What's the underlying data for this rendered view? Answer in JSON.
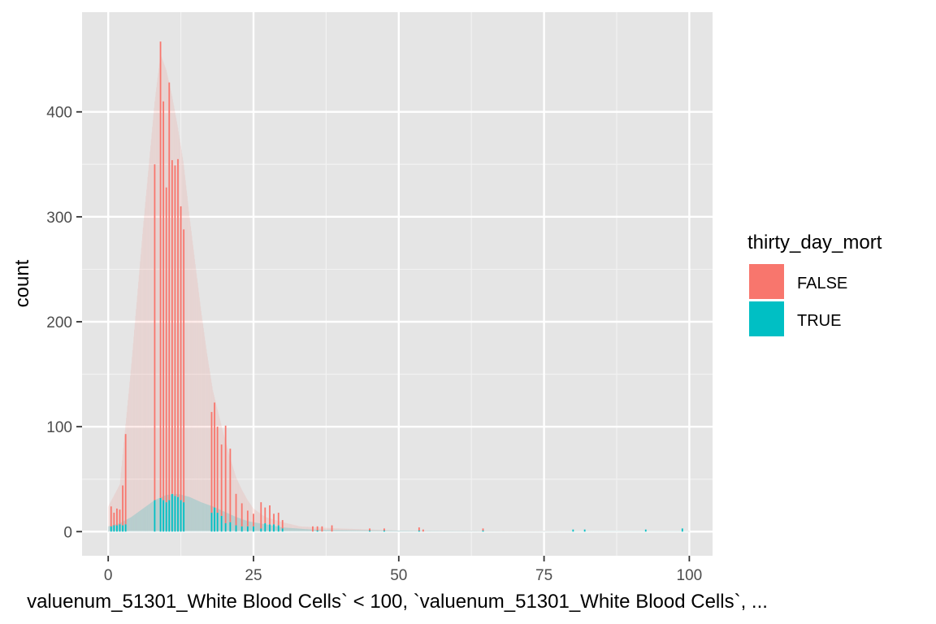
{
  "chart_data": {
    "type": "bar",
    "stacked": true,
    "xlabel": "valuenum_51301_White Blood Cells` < 100, `valuenum_51301_White Blood Cells`, ...",
    "ylabel": "count",
    "xlim": [
      -4.5,
      104
    ],
    "ylim": [
      -23,
      495
    ],
    "x_ticks": [
      0,
      25,
      50,
      75,
      100
    ],
    "x_tick_labels": [
      "0",
      "25",
      "50",
      "75",
      "100"
    ],
    "y_ticks": [
      0,
      100,
      200,
      300,
      400
    ],
    "y_tick_labels": [
      "0",
      "100",
      "200",
      "300",
      "400"
    ],
    "grid": true,
    "panel_background": "#e5e5e5",
    "legend": {
      "title": "thirty_day_mort",
      "position": "right",
      "entries": [
        {
          "label": "FALSE",
          "color": "#F8766D"
        },
        {
          "label": "TRUE",
          "color": "#00BFC4"
        }
      ]
    },
    "series": [
      {
        "name": "FALSE",
        "color": "#F8766D",
        "points": [
          [
            0.5,
            19
          ],
          [
            1,
            12
          ],
          [
            1.5,
            16
          ],
          [
            2,
            14
          ],
          [
            2.5,
            38
          ],
          [
            3,
            86
          ],
          [
            8,
            320
          ],
          [
            9,
            435
          ],
          [
            9.5,
            380
          ],
          [
            10,
            300
          ],
          [
            10.5,
            398
          ],
          [
            11,
            318
          ],
          [
            11.5,
            315
          ],
          [
            12,
            322
          ],
          [
            12.5,
            280
          ],
          [
            13,
            260
          ],
          [
            17.8,
            96
          ],
          [
            18.3,
            100
          ],
          [
            18.8,
            82
          ],
          [
            19.5,
            68
          ],
          [
            20.2,
            93
          ],
          [
            21,
            70
          ],
          [
            22,
            30
          ],
          [
            23,
            22
          ],
          [
            24,
            15
          ],
          [
            25,
            12
          ],
          [
            26.3,
            25
          ],
          [
            27,
            15
          ],
          [
            27.8,
            18
          ],
          [
            28.5,
            10
          ],
          [
            29.3,
            12
          ],
          [
            30,
            8
          ],
          [
            35.2,
            5
          ],
          [
            36,
            4
          ],
          [
            36.8,
            5
          ],
          [
            38.5,
            6
          ],
          [
            45,
            2
          ],
          [
            47.5,
            2
          ],
          [
            53.5,
            3
          ],
          [
            54.2,
            2
          ],
          [
            64.5,
            2
          ]
        ]
      },
      {
        "name": "TRUE",
        "color": "#00BFC4",
        "points": [
          [
            0.5,
            5
          ],
          [
            1,
            6
          ],
          [
            1.5,
            6
          ],
          [
            2,
            7
          ],
          [
            2.5,
            6
          ],
          [
            3,
            7
          ],
          [
            8,
            30
          ],
          [
            9,
            32
          ],
          [
            9.5,
            30
          ],
          [
            10,
            28
          ],
          [
            10.5,
            30
          ],
          [
            11,
            36
          ],
          [
            11.5,
            34
          ],
          [
            12,
            33
          ],
          [
            12.5,
            30
          ],
          [
            13,
            28
          ],
          [
            17.8,
            18
          ],
          [
            18.3,
            23
          ],
          [
            18.8,
            18
          ],
          [
            19.5,
            15
          ],
          [
            20.2,
            8
          ],
          [
            21,
            9
          ],
          [
            22,
            6
          ],
          [
            23,
            5
          ],
          [
            24,
            5
          ],
          [
            25,
            5
          ],
          [
            26.3,
            3
          ],
          [
            27,
            8
          ],
          [
            27.8,
            7
          ],
          [
            28.5,
            7
          ],
          [
            29.3,
            6
          ],
          [
            30,
            3
          ],
          [
            36,
            1
          ],
          [
            45,
            1
          ],
          [
            47.5,
            1
          ],
          [
            53.5,
            1
          ],
          [
            64.5,
            1
          ],
          [
            80,
            2
          ],
          [
            82,
            2
          ],
          [
            92.5,
            2
          ],
          [
            98.8,
            3
          ]
        ]
      }
    ],
    "background_density": {
      "false_top": [
        [
          0,
          24
        ],
        [
          2,
          45
        ],
        [
          4,
          160
        ],
        [
          6,
          290
        ],
        [
          7,
          350
        ],
        [
          8,
          410
        ],
        [
          9,
          455
        ],
        [
          10,
          440
        ],
        [
          11,
          415
        ],
        [
          12,
          385
        ],
        [
          13,
          350
        ],
        [
          14,
          300
        ],
        [
          15,
          255
        ],
        [
          16,
          210
        ],
        [
          17,
          170
        ],
        [
          18,
          135
        ],
        [
          19,
          112
        ],
        [
          20,
          90
        ],
        [
          21,
          70
        ],
        [
          22,
          52
        ],
        [
          23,
          40
        ],
        [
          24,
          30
        ],
        [
          25,
          22
        ],
        [
          27,
          14
        ],
        [
          30,
          9
        ],
        [
          33,
          5
        ],
        [
          36,
          4
        ],
        [
          40,
          3
        ],
        [
          45,
          2
        ],
        [
          50,
          1
        ],
        [
          60,
          1
        ],
        [
          70,
          1
        ],
        [
          85,
          0.5
        ],
        [
          100,
          0.5
        ]
      ],
      "true_top": [
        [
          0,
          5
        ],
        [
          2,
          8
        ],
        [
          4,
          14
        ],
        [
          6,
          22
        ],
        [
          8,
          30
        ],
        [
          10,
          35
        ],
        [
          12,
          36
        ],
        [
          14,
          33
        ],
        [
          16,
          28
        ],
        [
          18,
          24
        ],
        [
          20,
          19
        ],
        [
          22,
          14
        ],
        [
          24,
          10
        ],
        [
          26,
          8
        ],
        [
          28,
          6
        ],
        [
          30,
          4
        ],
        [
          35,
          2
        ],
        [
          40,
          1.5
        ],
        [
          50,
          1
        ],
        [
          70,
          0.5
        ],
        [
          100,
          0.5
        ]
      ]
    }
  }
}
